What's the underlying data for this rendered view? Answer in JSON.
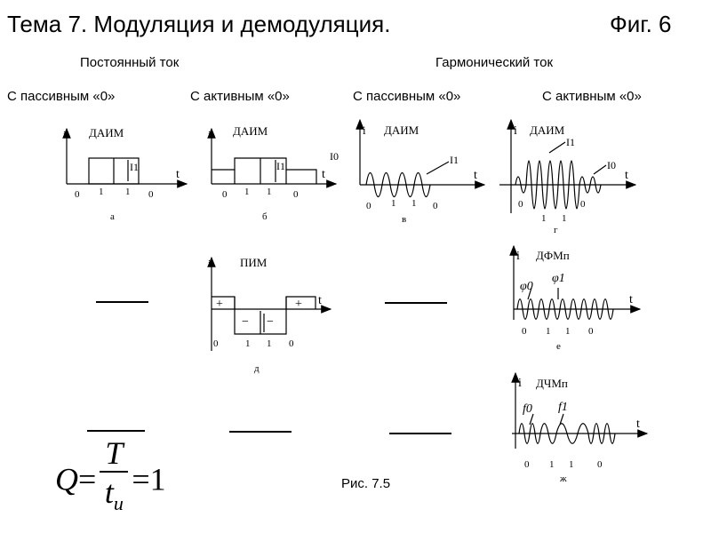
{
  "header": {
    "title": "Тема 7. Модуляция и демодуляция.",
    "fig_label": "Фиг. 6"
  },
  "groups": {
    "dc": "Постоянный ток",
    "ac": "Гармонический ток"
  },
  "columns": {
    "c1": "С пассивным «0»",
    "c2": "С активным «0»",
    "c3": "С пассивным «0»",
    "c4": "С активным «0»"
  },
  "panels": {
    "a": {
      "name": "ДАИМ",
      "axis_y": "i",
      "axis_x": "t",
      "current": "I1",
      "bits": [
        "0",
        "1",
        "1",
        "0"
      ],
      "letter": "а"
    },
    "b": {
      "name": "ДАИМ",
      "axis_y": "i",
      "axis_x": "t",
      "current1": "I1",
      "current0": "I0",
      "bits": [
        "0",
        "1",
        "1",
        "0"
      ],
      "letter": "б"
    },
    "v": {
      "name": "ДАИМ",
      "axis_y": "i",
      "axis_x": "t",
      "current": "I1",
      "bits": [
        "0",
        "1",
        "1",
        "0"
      ],
      "letter": "в"
    },
    "g": {
      "name": "ДАИМ",
      "axis_y": "i",
      "axis_x": "t",
      "current1": "I1",
      "current0": "I0",
      "bits": [
        "0",
        "1",
        "1",
        "0"
      ],
      "letter": "г"
    },
    "d": {
      "name": "ПИМ",
      "axis_y": "i",
      "axis_x": "t",
      "signs": [
        "+",
        "−",
        "−",
        "+"
      ],
      "bits": [
        "0",
        "1",
        "1",
        "0"
      ],
      "letter": "д"
    },
    "e": {
      "name": "ДФМп",
      "axis_y": "i",
      "axis_x": "t",
      "phase0": "φ0",
      "phase1": "φ1",
      "bits": [
        "0",
        "1",
        "1",
        "0"
      ],
      "letter": "е"
    },
    "zh": {
      "name": "ДЧМп",
      "axis_y": "i",
      "axis_x": "t",
      "freq0": "f0",
      "freq1": "f1",
      "bits": [
        "0",
        "1",
        "1",
        "0"
      ],
      "letter": "ж"
    }
  },
  "formula": {
    "lhs": "Q",
    "num": "T",
    "den": "t",
    "den_sub": "и",
    "rhs": "1"
  },
  "caption": "Рис. 7.5"
}
